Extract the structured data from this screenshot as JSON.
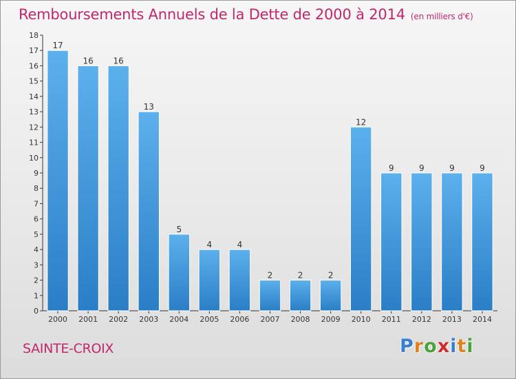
{
  "title": "Remboursements Annuels de la Dette de 2000 à 2014",
  "unit_note": "(en milliers d'€)",
  "city": "SAINTE-CROIX",
  "logo": {
    "letters": [
      "P",
      "r",
      "o",
      "x",
      "i",
      "t",
      "i"
    ],
    "colors": [
      "#3a7fcf",
      "#e0821c",
      "#4aa33a",
      "#d12a2a",
      "#3a7fcf",
      "#e0821c",
      "#4aa33a"
    ]
  },
  "colors": {
    "title": "#c2276b",
    "bar_top": "#5cb0ec",
    "bar_bottom": "#2a7ec6",
    "axis": "#333333"
  },
  "chart_data": {
    "type": "bar",
    "categories": [
      "2000",
      "2001",
      "2002",
      "2003",
      "2004",
      "2005",
      "2006",
      "2007",
      "2008",
      "2009",
      "2010",
      "2011",
      "2012",
      "2013",
      "2014"
    ],
    "values": [
      17,
      16,
      16,
      13,
      5,
      4,
      4,
      2,
      2,
      2,
      12,
      9,
      9,
      9,
      9
    ],
    "ylim": [
      0,
      18
    ],
    "yticks": [
      "0",
      "1",
      "2",
      "3",
      "4",
      "5",
      "6",
      "7",
      "8",
      "9",
      "10",
      "11",
      "12",
      "13",
      "14",
      "15",
      "16",
      "17",
      "18"
    ],
    "grid": false,
    "data_labels": true
  }
}
